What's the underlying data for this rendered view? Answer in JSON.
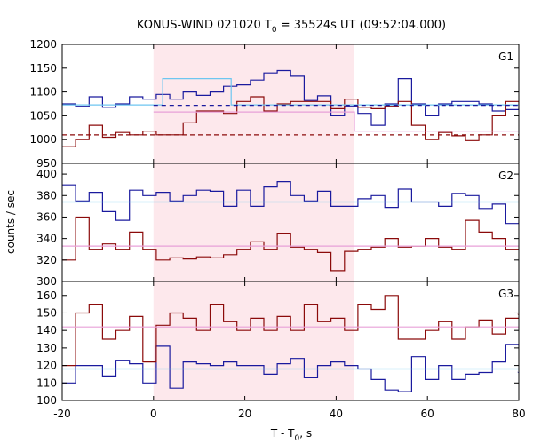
{
  "chart_data": {
    "type": "line",
    "title": {
      "main": "KONUS-WIND 021020 T",
      "sub": "0",
      "rest": " = 35524s UT (09:52:04.000)"
    },
    "xlabel": {
      "main": "T - T",
      "sub": "0",
      "rest": ", s"
    },
    "ylabel": "counts / sec",
    "xlim": [
      -20,
      80
    ],
    "x_ticks": [
      -20,
      0,
      20,
      40,
      60,
      80
    ],
    "shaded_interval": [
      0,
      44
    ],
    "colors": {
      "blue_histogram": "#1a1a9e",
      "red_histogram": "#8b0a0a",
      "blue_fit": "#6ec6f0",
      "red_fit": "#e8a0d8",
      "mean_dashed_blue": "#1a1a9e",
      "mean_dashed_red": "#8b0a0a",
      "shade": "#fde8ec"
    },
    "bin_edges_note": "2.944 s bins starting at -20",
    "panels": [
      {
        "label": "G1",
        "ylim": [
          950,
          1200
        ],
        "y_ticks": [
          950,
          1000,
          1050,
          1100,
          1150,
          1200
        ],
        "series": [
          {
            "style": "blue_histogram",
            "bin_start": -20,
            "bin_width": 2.944,
            "values": [
              1075,
              1070,
              1090,
              1068,
              1075,
              1090,
              1085,
              1095,
              1085,
              1100,
              1093,
              1100,
              1112,
              1115,
              1125,
              1140,
              1145,
              1133,
              1082,
              1092,
              1050,
              1070,
              1055,
              1030,
              1075,
              1128,
              1075,
              1050,
              1075,
              1080,
              1080,
              1075,
              1060,
              1063,
              1100,
              1085,
              1075,
              1083,
              1078,
              1080,
              1072,
              1060,
              1070,
              1070
            ]
          },
          {
            "style": "red_histogram",
            "bin_start": -20,
            "bin_width": 2.944,
            "values": [
              985,
              1000,
              1030,
              1005,
              1015,
              1010,
              1018,
              1010,
              1010,
              1035,
              1060,
              1060,
              1055,
              1080,
              1090,
              1060,
              1075,
              1080,
              1080,
              1080,
              1065,
              1085,
              1068,
              1065,
              1070,
              1080,
              1030,
              1000,
              1015,
              1008,
              998,
              1010,
              1050,
              1080,
              1000,
              1030,
              1040,
              1045,
              1042,
              1040,
              1025,
              1040,
              1030,
              1040
            ]
          },
          {
            "style": "blue_fit",
            "steps": [
              {
                "x": [
                  -20,
                  2
                ],
                "y": 1073
              },
              {
                "x": [
                  2,
                  17
                ],
                "y": 1128
              },
              {
                "x": [
                  17,
                  44
                ],
                "y": 1073
              },
              {
                "x": [
                  44,
                  80
                ],
                "y": 1073
              }
            ]
          },
          {
            "style": "red_fit",
            "steps": [
              {
                "x": [
                  0,
                  44
                ],
                "y": 1058
              },
              {
                "x": [
                  44,
                  80
                ],
                "y": 1018
              }
            ]
          },
          {
            "style": "mean_dashed_blue",
            "x": [
              0,
              80
            ],
            "y": 1072
          },
          {
            "style": "mean_dashed_red",
            "x": [
              -20,
              80
            ],
            "y": 1010
          }
        ]
      },
      {
        "label": "G2",
        "ylim": [
          300,
          410
        ],
        "y_ticks": [
          300,
          320,
          340,
          360,
          380,
          400
        ],
        "series": [
          {
            "style": "blue_histogram",
            "bin_start": -20,
            "bin_width": 2.944,
            "values": [
              390,
              375,
              383,
              365,
              357,
              385,
              380,
              383,
              375,
              380,
              385,
              384,
              370,
              385,
              370,
              388,
              393,
              380,
              375,
              384,
              370,
              370,
              377,
              380,
              369,
              386,
              374,
              374,
              370,
              382,
              380,
              368,
              372,
              354,
              385,
              379,
              371,
              358,
              372,
              375,
              373,
              376,
              373,
              380
            ]
          },
          {
            "style": "red_histogram",
            "bin_start": -20,
            "bin_width": 2.944,
            "values": [
              320,
              360,
              330,
              335,
              330,
              346,
              330,
              320,
              322,
              321,
              323,
              322,
              325,
              330,
              337,
              330,
              345,
              332,
              330,
              327,
              310,
              328,
              330,
              332,
              340,
              332,
              333,
              340,
              332,
              330,
              357,
              346,
              340,
              330,
              325,
              320,
              325,
              325,
              333,
              320,
              327,
              328,
              321,
              320
            ]
          },
          {
            "style": "blue_fit",
            "steps": [
              {
                "x": [
                  -20,
                  80
                ],
                "y": 374
              }
            ]
          },
          {
            "style": "red_fit",
            "steps": [
              {
                "x": [
                  -20,
                  80
                ],
                "y": 333
              }
            ]
          }
        ]
      },
      {
        "label": "G3",
        "ylim": [
          100,
          168
        ],
        "y_ticks": [
          100,
          110,
          120,
          130,
          140,
          150,
          160
        ],
        "series": [
          {
            "style": "blue_histogram",
            "bin_start": -20,
            "bin_width": 2.944,
            "values": [
              110,
              120,
              120,
              114,
              123,
              121,
              110,
              131,
              107,
              122,
              121,
              120,
              122,
              120,
              120,
              115,
              121,
              124,
              113,
              120,
              122,
              120,
              118,
              112,
              106,
              105,
              125,
              112,
              120,
              112,
              115,
              116,
              122,
              132,
              116,
              110,
              115,
              108,
              112,
              120,
              131,
              121,
              110,
              118
            ]
          },
          {
            "style": "red_histogram",
            "bin_start": -20,
            "bin_width": 2.944,
            "values": [
              120,
              150,
              155,
              135,
              140,
              148,
              122,
              143,
              150,
              147,
              140,
              155,
              145,
              140,
              147,
              140,
              148,
              140,
              155,
              145,
              147,
              140,
              155,
              152,
              160,
              135,
              135,
              140,
              145,
              135,
              142,
              146,
              138,
              147,
              149,
              143,
              144,
              140,
              148,
              142,
              138,
              145,
              150,
              152
            ]
          },
          {
            "style": "blue_fit",
            "steps": [
              {
                "x": [
                  -20,
                  80
                ],
                "y": 118
              }
            ]
          },
          {
            "style": "red_fit",
            "steps": [
              {
                "x": [
                  -20,
                  80
                ],
                "y": 142
              }
            ]
          }
        ]
      }
    ]
  }
}
